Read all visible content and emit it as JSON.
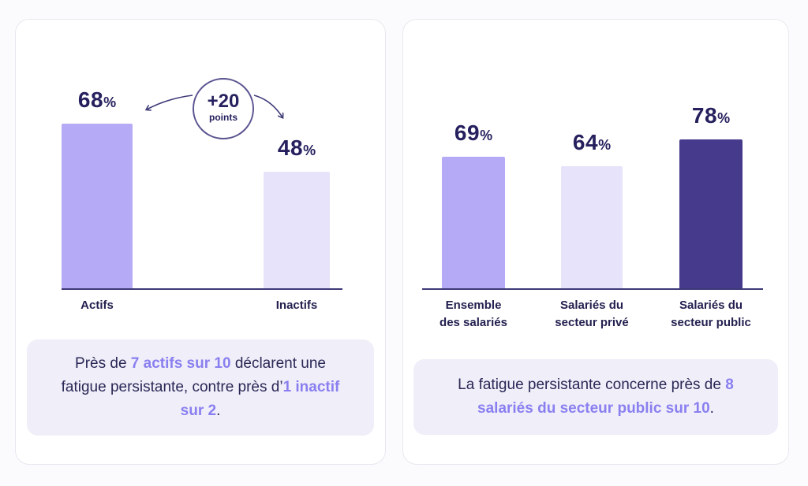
{
  "colors": {
    "background": "#fbfbfd",
    "medium_purple": "#b4aaf5",
    "light_purple": "#e6e3fb",
    "dark_purple": "#463a8c",
    "highlight": "#8a7ff0",
    "note_background": "#efeef9"
  },
  "left_panel": {
    "note": {
      "part1": "Près de ",
      "hl1": "7 actifs sur 10",
      "part2": " déclarent une fatigue persistante, contre près d’",
      "hl2": "1 inactif sur 2",
      "part3": "."
    },
    "delta_badge": {
      "value": "+20",
      "label": "points"
    }
  },
  "right_panel": {
    "note": {
      "part1": "La fatigue persistante concerne près de ",
      "hl1": "8 salariés du secteur public sur 10",
      "part2": "."
    }
  },
  "chart_data": [
    {
      "type": "bar",
      "categories": [
        "Actifs",
        "Inactifs"
      ],
      "values": [
        68,
        48
      ],
      "value_labels": [
        "68",
        "48"
      ],
      "unit": "%",
      "bar_colors": [
        "#b4aaf5",
        "#e6e3fb"
      ],
      "ylim": [
        0,
        100
      ],
      "grid": false,
      "annotation": "+20 points"
    },
    {
      "type": "bar",
      "categories": [
        [
          "Ensemble",
          "des salariés"
        ],
        [
          "Salariés du",
          "secteur privé"
        ],
        [
          "Salariés du",
          "secteur public"
        ]
      ],
      "values": [
        69,
        64,
        78
      ],
      "value_labels": [
        "69",
        "64",
        "78"
      ],
      "unit": "%",
      "bar_colors": [
        "#b4aaf5",
        "#e6e3fb",
        "#463a8c"
      ],
      "ylim": [
        0,
        100
      ],
      "grid": false
    }
  ]
}
